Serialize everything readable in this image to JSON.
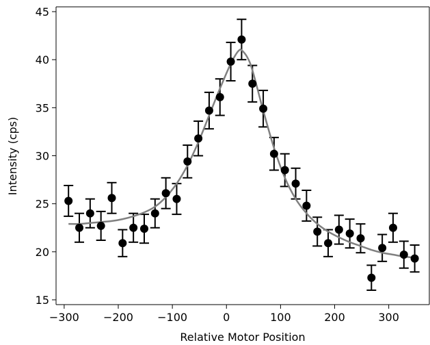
{
  "chart_data": {
    "type": "scatter",
    "xlabel": "Relative Motor Position",
    "ylabel": "Intensity (cps)",
    "xlim": [
      -315,
      375
    ],
    "ylim": [
      14.5,
      45.5
    ],
    "xticks": [
      -300,
      -200,
      -100,
      0,
      100,
      200,
      300
    ],
    "yticks": [
      15,
      20,
      25,
      30,
      35,
      40,
      45
    ],
    "x_tick_labels": [
      "−300",
      "−200",
      "−100",
      "0",
      "100",
      "200",
      "300"
    ],
    "y_tick_labels": [
      "15",
      "20",
      "25",
      "30",
      "35",
      "40",
      "45"
    ],
    "grid": false,
    "legend": "none",
    "colors": {
      "points": "#000000",
      "errorbars": "#000000",
      "fit": "#808080"
    },
    "series": [
      {
        "x": [
          -292,
          -272,
          -252,
          -232,
          -212,
          -192,
          -172,
          -152,
          -132,
          -112,
          -92,
          -72,
          -52,
          -32,
          -12,
          8,
          28,
          48,
          68,
          88,
          108,
          128,
          148,
          168,
          188,
          208,
          228,
          248,
          268,
          288,
          308,
          328,
          348
        ],
        "y": [
          25.3,
          22.5,
          24.0,
          22.7,
          25.6,
          20.9,
          22.5,
          22.4,
          24.0,
          26.1,
          25.5,
          29.4,
          31.8,
          34.7,
          36.1,
          39.8,
          42.1,
          37.5,
          34.9,
          30.2,
          28.5,
          27.1,
          24.8,
          22.1,
          20.9,
          22.3,
          21.9,
          21.4,
          17.3,
          20.4,
          22.5,
          19.7,
          19.3
        ],
        "yerr": [
          1.6,
          1.5,
          1.5,
          1.5,
          1.6,
          1.4,
          1.5,
          1.5,
          1.5,
          1.6,
          1.6,
          1.7,
          1.8,
          1.9,
          1.9,
          2.0,
          2.1,
          1.9,
          1.9,
          1.7,
          1.7,
          1.6,
          1.6,
          1.5,
          1.4,
          1.5,
          1.5,
          1.5,
          1.3,
          1.4,
          1.5,
          1.4,
          1.4
        ]
      }
    ],
    "fit": {
      "x": [
        -292,
        -272,
        -252,
        -232,
        -212,
        -192,
        -172,
        -152,
        -132,
        -112,
        -92,
        -72,
        -52,
        -32,
        -12,
        8,
        18,
        24,
        28,
        38,
        48,
        68,
        88,
        108,
        128,
        148,
        168,
        188,
        208,
        228,
        248,
        268,
        288,
        308,
        328,
        348
      ],
      "y": [
        22.9,
        22.9,
        23.0,
        23.1,
        23.2,
        23.4,
        23.7,
        24.1,
        24.7,
        25.7,
        27.1,
        29.0,
        31.4,
        34.2,
        37.0,
        39.6,
        40.6,
        41.0,
        41.0,
        40.3,
        38.9,
        34.7,
        30.8,
        27.7,
        25.5,
        24.0,
        22.9,
        22.1,
        21.5,
        21.0,
        20.6,
        20.2,
        19.9,
        19.7,
        19.5,
        19.4
      ]
    }
  }
}
